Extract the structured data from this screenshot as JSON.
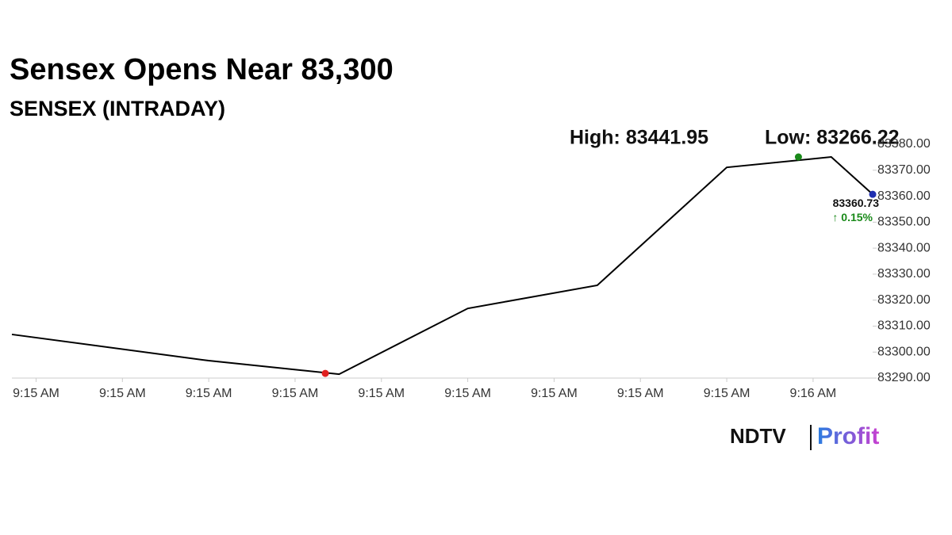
{
  "chart_data": {
    "type": "line",
    "title": "Sensex Opens Near 83,300",
    "subtitle": "SENSEX (INTRADAY)",
    "x": [
      -0.28,
      2,
      3.51,
      5,
      6.5,
      8,
      9.21,
      9.69
    ],
    "values": [
      83306.8,
      83296.7,
      83291.5,
      83316.8,
      83325.7,
      83371.1,
      83375.1,
      83360.73
    ],
    "color": "#000000",
    "markers": [
      {
        "x": 3.35,
        "value": 83291.8,
        "color": "#e02020"
      },
      {
        "x": 8.83,
        "value": 83375.1,
        "color": "#1a8a1a"
      },
      {
        "x": 9.69,
        "value": 83360.73,
        "color": "#1f2fb0"
      }
    ],
    "xlim": [
      -0.28,
      9.69
    ],
    "xticks": [
      {
        "value": 0,
        "label": "9:15 AM"
      },
      {
        "value": 1,
        "label": "9:15 AM"
      },
      {
        "value": 2,
        "label": "9:15 AM"
      },
      {
        "value": 3,
        "label": "9:15 AM"
      },
      {
        "value": 4,
        "label": "9:15 AM"
      },
      {
        "value": 5,
        "label": "9:15 AM"
      },
      {
        "value": 6,
        "label": "9:15 AM"
      },
      {
        "value": 7,
        "label": "9:15 AM"
      },
      {
        "value": 8,
        "label": "9:15 AM"
      },
      {
        "value": 9,
        "label": "9:16 AM"
      }
    ],
    "ylim": [
      83290,
      83380
    ],
    "yticks": [
      {
        "value": 83290,
        "label": "83290.00"
      },
      {
        "value": 83300,
        "label": "83300.00"
      },
      {
        "value": 83310,
        "label": "83310.00"
      },
      {
        "value": 83320,
        "label": "83320.00"
      },
      {
        "value": 83330,
        "label": "83330.00"
      },
      {
        "value": 83340,
        "label": "83340.00"
      },
      {
        "value": 83350,
        "label": "83350.00"
      },
      {
        "value": 83360,
        "label": "83360.00"
      },
      {
        "value": 83370,
        "label": "83370.00"
      },
      {
        "value": 83380,
        "label": "83380.00"
      }
    ],
    "high_label": "High: 83441.95",
    "low_label": "Low: 83266.22",
    "last_label": "83360.73",
    "change_label": "↑ 0.15%",
    "logo": {
      "brand": "NDTV",
      "product": "Profit"
    }
  }
}
